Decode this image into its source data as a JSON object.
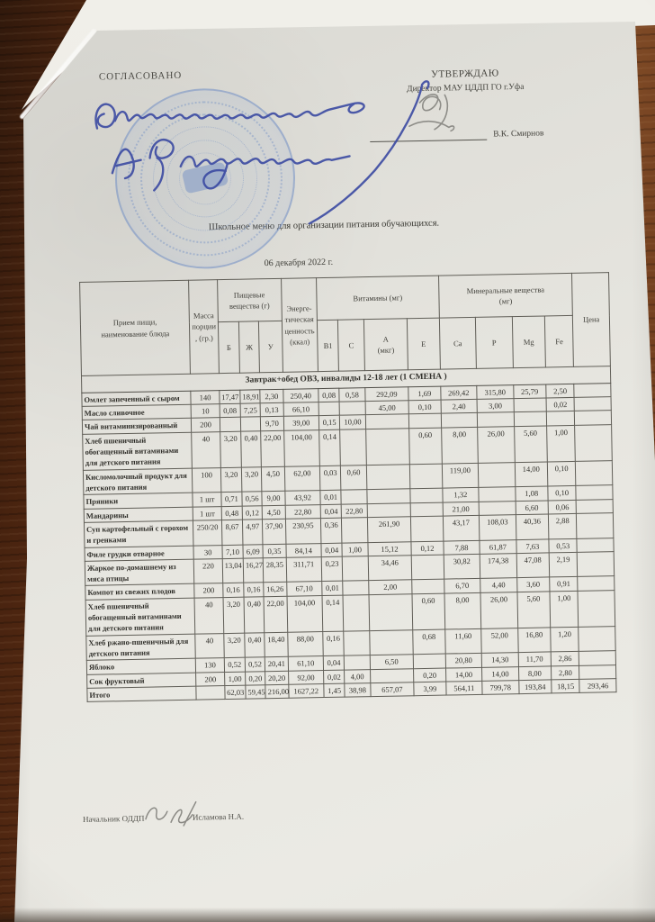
{
  "approvals": {
    "agreed_label": "СОГЛАСОВАНО",
    "agreed_note": "Ознакомлена А.Р. Уразова",
    "approved_label": "УТВЕРЖДАЮ",
    "approved_title": "Директор МАУ ЦДДП ГО г.Уфа",
    "approved_signer": "В.К. Смирнов"
  },
  "doc": {
    "title": "Школьное меню для организации питания обучающихся.",
    "date": "06 декабря 2022 г."
  },
  "table": {
    "header": {
      "meal": "Прием пищи,\nнаименование блюда",
      "mass": "Масса порции, (гр.)",
      "nutrients_group": "Пищевые\nвещества (г)",
      "b": "Б",
      "zh": "Ж",
      "u": "У",
      "energy": "Энерге-тическая ценность (ккал)",
      "vitamins_group": "Витамины (мг)",
      "b1": "В1",
      "c": "С",
      "a": "А\n(мкг)",
      "e": "Е",
      "minerals_group": "Минеральные вещества\n(мг)",
      "ca": "Ca",
      "p": "P",
      "mg": "Mg",
      "fe": "Fe",
      "price": "Цена"
    },
    "section": "Завтрак+обед ОВЗ, инвалиды 12-18 лет (1 СМЕНА )",
    "rows": [
      {
        "name": "Омлет запеченный с сыром",
        "cells": [
          "140",
          "17,47",
          "18,91",
          "2,30",
          "250,40",
          "0,08",
          "0,58",
          "292,09",
          "1,69",
          "269,42",
          "315,80",
          "25,79",
          "2,50",
          ""
        ]
      },
      {
        "name": "Масло сливочное",
        "cells": [
          "10",
          "0,08",
          "7,25",
          "0,13",
          "66,10",
          "",
          "",
          "45,00",
          "0,10",
          "2,40",
          "3,00",
          "",
          "0,02",
          ""
        ]
      },
      {
        "name": "Чай витаминизированный",
        "cells": [
          "200",
          "",
          "",
          "9,70",
          "39,00",
          "0,15",
          "10,00",
          "",
          "",
          "",
          "",
          "",
          "",
          ""
        ]
      },
      {
        "name": "Хлеб пшеничный обогащенный витаминами для детского питания",
        "cells": [
          "40",
          "3,20",
          "0,40",
          "22,00",
          "104,00",
          "0,14",
          "",
          "",
          "0,60",
          "8,00",
          "26,00",
          "5,60",
          "1,00",
          ""
        ]
      },
      {
        "name": "Кисломолочный продукт для детского питания",
        "cells": [
          "100",
          "3,20",
          "3,20",
          "4,50",
          "62,00",
          "0,03",
          "0,60",
          "",
          "",
          "119,00",
          "",
          "14,00",
          "0,10",
          ""
        ]
      },
      {
        "name": "Пряники",
        "cells": [
          "1 шт",
          "0,71",
          "0,56",
          "9,00",
          "43,92",
          "0,01",
          "",
          "",
          "",
          "1,32",
          "",
          "1,08",
          "0,10",
          ""
        ]
      },
      {
        "name": "Мандарины",
        "cells": [
          "1 шт",
          "0,48",
          "0,12",
          "4,50",
          "22,80",
          "0,04",
          "22,80",
          "",
          "",
          "21,00",
          "",
          "6,60",
          "0,06",
          ""
        ]
      },
      {
        "name": "Суп картофельный с горохом и гренками",
        "cells": [
          "250/20",
          "8,67",
          "4,97",
          "37,90",
          "230,95",
          "0,36",
          "",
          "261,90",
          "",
          "43,17",
          "108,03",
          "40,36",
          "2,88",
          ""
        ]
      },
      {
        "name": "Филе грудки отварное",
        "cells": [
          "30",
          "7,10",
          "6,09",
          "0,35",
          "84,14",
          "0,04",
          "1,00",
          "15,12",
          "0,12",
          "7,88",
          "61,87",
          "7,63",
          "0,53",
          ""
        ]
      },
      {
        "name": "Жаркое по-домашнему из мяса птицы",
        "cells": [
          "220",
          "13,04",
          "16,27",
          "28,35",
          "311,71",
          "0,23",
          "",
          "34,46",
          "",
          "30,82",
          "174,38",
          "47,08",
          "2,19",
          ""
        ]
      },
      {
        "name": "Компот из свежих плодов",
        "cells": [
          "200",
          "0,16",
          "0,16",
          "16,26",
          "67,10",
          "0,01",
          "",
          "2,00",
          "",
          "6,70",
          "4,40",
          "3,60",
          "0,91",
          ""
        ]
      },
      {
        "name": "Хлеб пшеничный обогащенный витаминами для детского питания",
        "cells": [
          "40",
          "3,20",
          "0,40",
          "22,00",
          "104,00",
          "0,14",
          "",
          "",
          "0,60",
          "8,00",
          "26,00",
          "5,60",
          "1,00",
          ""
        ]
      },
      {
        "name": "Хлеб ржано-пшеничный для детского питания",
        "cells": [
          "40",
          "3,20",
          "0,40",
          "18,40",
          "88,00",
          "0,16",
          "",
          "",
          "0,68",
          "11,60",
          "52,00",
          "16,80",
          "1,20",
          ""
        ]
      },
      {
        "name": "Яблоко",
        "cells": [
          "130",
          "0,52",
          "0,52",
          "20,41",
          "61,10",
          "0,04",
          "",
          "6,50",
          "",
          "20,80",
          "14,30",
          "11,70",
          "2,86",
          ""
        ]
      },
      {
        "name": "Сок фруктовый",
        "cells": [
          "200",
          "1,00",
          "0,20",
          "20,20",
          "92,00",
          "0,02",
          "4,00",
          "",
          "0,20",
          "14,00",
          "14,00",
          "8,00",
          "2,80",
          ""
        ]
      },
      {
        "name": "Итого",
        "cells": [
          "",
          "62,03",
          "59,45",
          "216,00",
          "1627,22",
          "1,45",
          "38,98",
          "657,07",
          "3,99",
          "564,11",
          "799,78",
          "193,84",
          "18,15",
          "293,46"
        ],
        "total": true
      }
    ]
  },
  "footer": {
    "position": "Начальник ОДДП",
    "signer": "Исламова Н.А."
  }
}
